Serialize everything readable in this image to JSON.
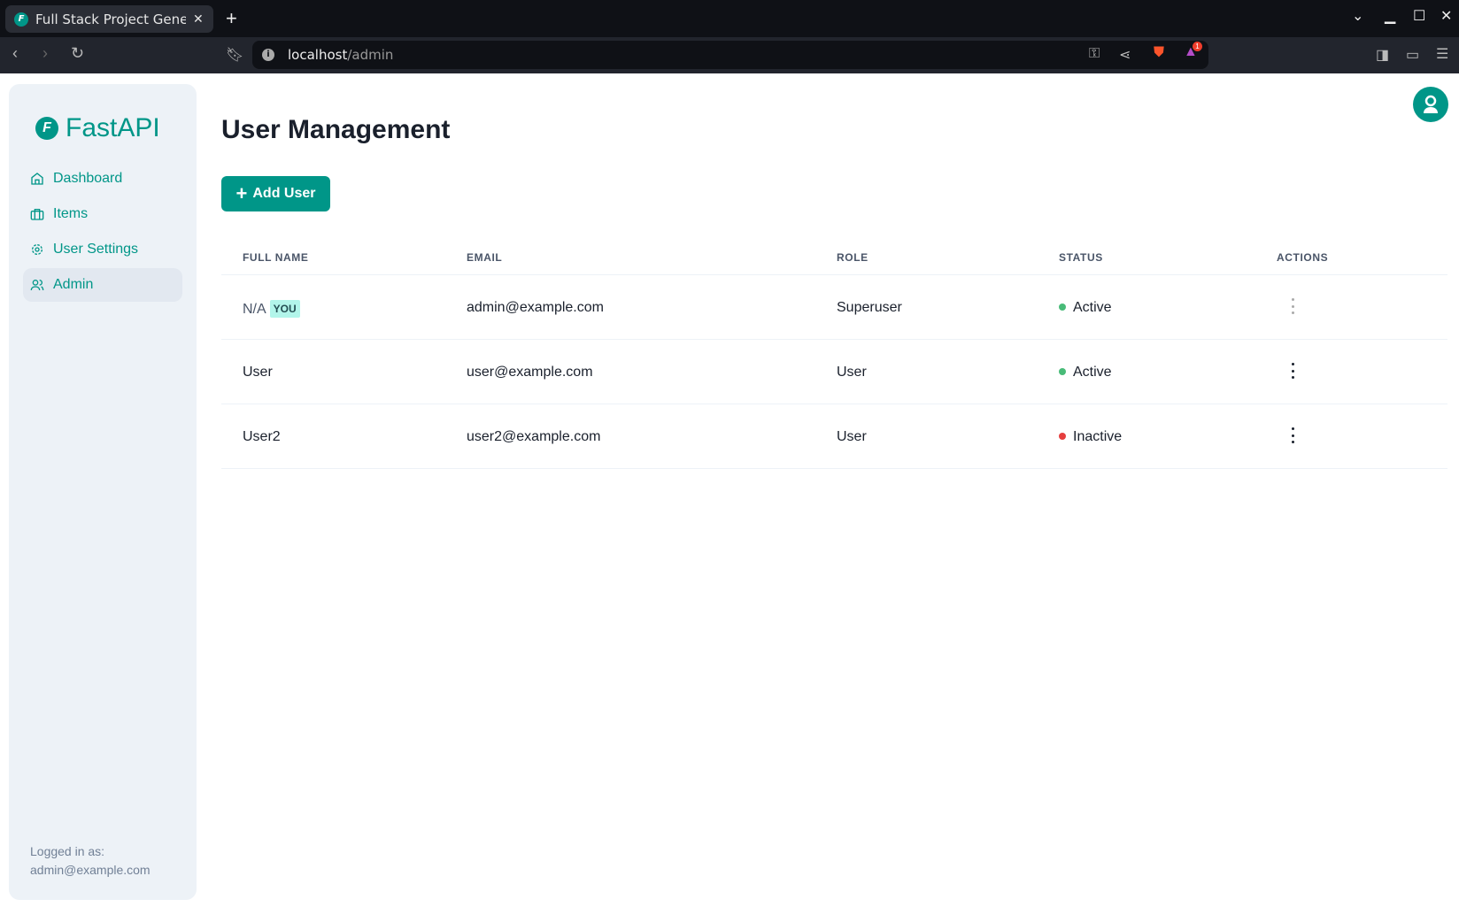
{
  "browser": {
    "tab_title": "Full Stack Project Genera",
    "url_host": "localhost",
    "url_path": "/admin",
    "notification_count": "1"
  },
  "sidebar": {
    "logo": "FastAPI",
    "items": [
      {
        "label": "Dashboard",
        "icon": "home-icon"
      },
      {
        "label": "Items",
        "icon": "briefcase-icon"
      },
      {
        "label": "User Settings",
        "icon": "gear-icon"
      },
      {
        "label": "Admin",
        "icon": "users-icon",
        "active": true
      }
    ],
    "logged_in_label": "Logged in as:",
    "logged_in_email": "admin@example.com"
  },
  "main": {
    "title": "User Management",
    "add_user_label": "Add User",
    "table": {
      "headers": [
        "FULL NAME",
        "EMAIL",
        "ROLE",
        "STATUS",
        "ACTIONS"
      ],
      "rows": [
        {
          "full_name": "N/A",
          "badge": "YOU",
          "email": "admin@example.com",
          "role": "Superuser",
          "status": "Active",
          "status_color": "#48bb78",
          "actions_disabled": true
        },
        {
          "full_name": "User",
          "email": "user@example.com",
          "role": "User",
          "status": "Active",
          "status_color": "#48bb78"
        },
        {
          "full_name": "User2",
          "email": "user2@example.com",
          "role": "User",
          "status": "Inactive",
          "status_color": "#e53e3e"
        }
      ]
    }
  },
  "colors": {
    "accent": "#009688",
    "sidebar_bg": "#edf2f7"
  }
}
